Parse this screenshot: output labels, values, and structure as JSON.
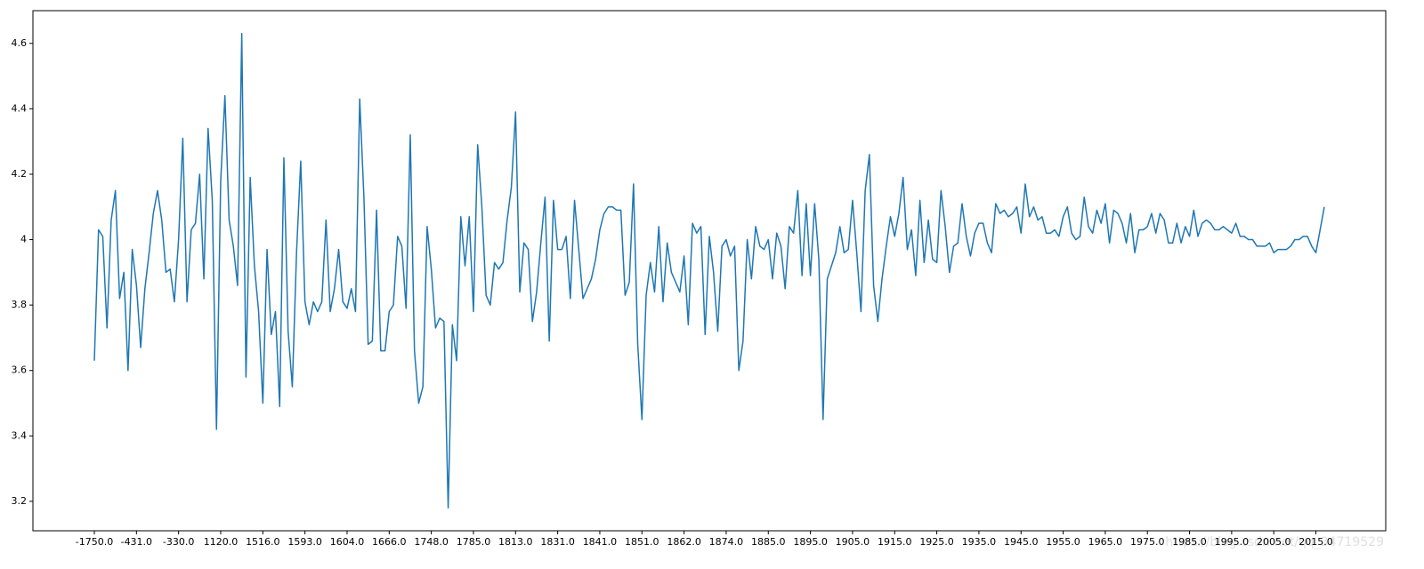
{
  "chart_data": {
    "type": "line",
    "categories": [
      "-1750.0",
      null,
      null,
      null,
      null,
      null,
      null,
      null,
      null,
      null,
      "-431.0",
      null,
      null,
      null,
      null,
      null,
      null,
      null,
      null,
      null,
      "-330.0",
      null,
      null,
      null,
      null,
      null,
      null,
      null,
      null,
      null,
      "1120.0",
      null,
      null,
      null,
      null,
      null,
      null,
      null,
      null,
      null,
      "1516.0",
      null,
      null,
      null,
      null,
      null,
      null,
      null,
      null,
      null,
      "1593.0",
      null,
      null,
      null,
      null,
      null,
      null,
      null,
      null,
      null,
      "1604.0",
      null,
      null,
      null,
      null,
      null,
      null,
      null,
      null,
      null,
      "1666.0",
      null,
      null,
      null,
      null,
      null,
      null,
      null,
      null,
      null,
      "1748.0",
      null,
      null,
      null,
      null,
      null,
      null,
      null,
      null,
      null,
      "1785.0",
      null,
      null,
      null,
      null,
      null,
      null,
      null,
      null,
      null,
      "1813.0",
      null,
      null,
      null,
      null,
      null,
      null,
      null,
      null,
      null,
      "1831.0",
      null,
      null,
      null,
      null,
      null,
      null,
      null,
      null,
      null,
      "1841.0",
      null,
      null,
      null,
      null,
      null,
      null,
      null,
      null,
      null,
      "1851.0",
      null,
      null,
      null,
      null,
      null,
      null,
      null,
      null,
      null,
      "1862.0",
      null,
      null,
      null,
      null,
      null,
      null,
      null,
      null,
      null,
      "1874.0",
      null,
      null,
      null,
      null,
      null,
      null,
      null,
      null,
      null,
      "1885.0",
      null,
      null,
      null,
      null,
      null,
      null,
      null,
      null,
      null,
      "1895.0",
      null,
      null,
      null,
      null,
      null,
      null,
      null,
      null,
      null,
      "1905.0",
      null,
      null,
      null,
      null,
      null,
      null,
      null,
      null,
      null,
      "1915.0",
      null,
      null,
      null,
      null,
      null,
      null,
      null,
      null,
      null,
      "1925.0",
      null,
      null,
      null,
      null,
      null,
      null,
      null,
      null,
      null,
      "1935.0",
      null,
      null,
      null,
      null,
      null,
      null,
      null,
      null,
      null,
      "1945.0",
      null,
      null,
      null,
      null,
      null,
      null,
      null,
      null,
      null,
      "1955.0",
      null,
      null,
      null,
      null,
      null,
      null,
      null,
      null,
      null,
      "1965.0",
      null,
      null,
      null,
      null,
      null,
      null,
      null,
      null,
      null,
      "1975.0",
      null,
      null,
      null,
      null,
      null,
      null,
      null,
      null,
      null,
      "1985.0",
      null,
      null,
      null,
      null,
      null,
      null,
      null,
      null,
      null,
      "1995.0",
      null,
      null,
      null,
      null,
      null,
      null,
      null,
      null,
      null,
      "2005.0",
      null,
      null,
      null,
      null,
      null,
      null,
      null,
      null,
      null,
      "2015.0",
      null,
      null
    ],
    "values": [
      3.63,
      4.03,
      4.01,
      3.73,
      4.06,
      4.15,
      3.82,
      3.9,
      3.6,
      3.97,
      3.86,
      3.67,
      3.85,
      3.96,
      4.08,
      4.15,
      4.06,
      3.9,
      3.91,
      3.81,
      4.0,
      4.31,
      3.81,
      4.03,
      4.05,
      4.2,
      3.88,
      4.34,
      4.12,
      3.42,
      4.18,
      4.44,
      4.06,
      3.98,
      3.86,
      4.63,
      3.58,
      4.19,
      3.92,
      3.78,
      3.5,
      3.97,
      3.71,
      3.78,
      3.49,
      4.25,
      3.72,
      3.55,
      3.96,
      4.24,
      3.81,
      3.74,
      3.81,
      3.78,
      3.81,
      4.06,
      3.78,
      3.85,
      3.97,
      3.81,
      3.79,
      3.85,
      3.78,
      4.43,
      4.13,
      3.68,
      3.69,
      4.09,
      3.66,
      3.66,
      3.78,
      3.8,
      4.01,
      3.98,
      3.79,
      4.32,
      3.66,
      3.5,
      3.55,
      4.04,
      3.91,
      3.73,
      3.76,
      3.75,
      3.18,
      3.74,
      3.63,
      4.07,
      3.92,
      4.07,
      3.78,
      4.29,
      4.1,
      3.83,
      3.8,
      3.93,
      3.91,
      3.93,
      4.06,
      4.16,
      4.39,
      3.84,
      3.99,
      3.97,
      3.75,
      3.84,
      3.99,
      4.13,
      3.69,
      4.12,
      3.97,
      3.97,
      4.01,
      3.82,
      4.12,
      3.97,
      3.82,
      3.85,
      3.88,
      3.94,
      4.03,
      4.08,
      4.1,
      4.1,
      4.09,
      4.09,
      3.83,
      3.87,
      4.17,
      3.68,
      3.45,
      3.83,
      3.93,
      3.84,
      4.04,
      3.81,
      3.99,
      3.9,
      3.87,
      3.84,
      3.95,
      3.74,
      4.05,
      4.02,
      4.04,
      3.71,
      4.01,
      3.9,
      3.72,
      3.98,
      4.0,
      3.95,
      3.98,
      3.6,
      3.69,
      4.0,
      3.88,
      4.04,
      3.98,
      3.97,
      4.0,
      3.88,
      4.02,
      3.98,
      3.85,
      4.04,
      4.02,
      4.15,
      3.89,
      4.11,
      3.89,
      4.11,
      3.94,
      3.45,
      3.88,
      3.92,
      3.96,
      4.04,
      3.96,
      3.97,
      4.12,
      3.96,
      3.78,
      4.15,
      4.26,
      3.86,
      3.75,
      3.88,
      3.98,
      4.07,
      4.01,
      4.08,
      4.19,
      3.97,
      4.03,
      3.89,
      4.12,
      3.93,
      4.06,
      3.94,
      3.93,
      4.15,
      4.04,
      3.9,
      3.98,
      3.99,
      4.11,
      4.01,
      3.95,
      4.02,
      4.05,
      4.05,
      3.99,
      3.96,
      4.11,
      4.08,
      4.09,
      4.07,
      4.08,
      4.1,
      4.02,
      4.17,
      4.07,
      4.1,
      4.06,
      4.07,
      4.02,
      4.02,
      4.03,
      4.01,
      4.07,
      4.1,
      4.02,
      4.0,
      4.01,
      4.13,
      4.04,
      4.02,
      4.09,
      4.05,
      4.11,
      3.99,
      4.09,
      4.08,
      4.05,
      3.99,
      4.08,
      3.96,
      4.03,
      4.03,
      4.04,
      4.08,
      4.02,
      4.08,
      4.06,
      3.99,
      3.99,
      4.05,
      3.99,
      4.04,
      4.01,
      4.09,
      4.01,
      4.05,
      4.06,
      4.05,
      4.03,
      4.03,
      4.04,
      4.03,
      4.02,
      4.05,
      4.01,
      4.01,
      4.0,
      4.0,
      3.98,
      3.98,
      3.98,
      3.99,
      3.96,
      3.97,
      3.97,
      3.97,
      3.98,
      4.0,
      4.0,
      4.01,
      4.01,
      3.98,
      3.96,
      4.03,
      4.1
    ],
    "color": "#1f77b4",
    "ylim": [
      3.11,
      4.7
    ],
    "yticks": [
      3.2,
      3.4,
      3.6,
      3.8,
      4.0,
      4.2,
      4.4,
      4.6
    ],
    "watermark": "https://blog.csdn.net/qq_34719529"
  }
}
